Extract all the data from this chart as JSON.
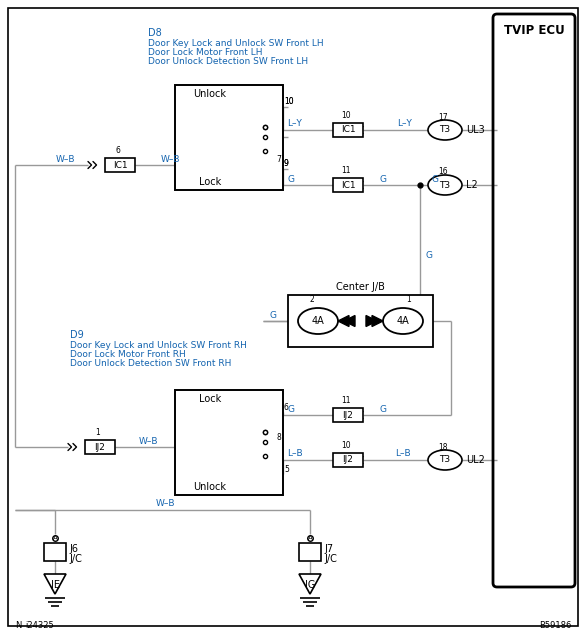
{
  "bg_color": "#ffffff",
  "wire_color": "#999999",
  "text_blue": "#1464af",
  "text_black": "#000000",
  "fig_width": 5.86,
  "fig_height": 6.35,
  "d8_line1": "D8",
  "d8_line2": "Door Key Lock and Unlock SW Front LH",
  "d8_line3": "Door Lock Motor Front LH",
  "d8_line4": "Door Unlock Detection SW Front LH",
  "d9_line1": "D9",
  "d9_line2": "Door Key Lock and Unlock SW Front RH",
  "d9_line3": "Door Lock Motor Front RH",
  "d9_line4": "Door Unlock Detection SW Front RH",
  "tvip_label": "TVIP ECU",
  "center_jb_label": "Center J/B",
  "footnote_n": "N",
  "footnote_id": "i24325",
  "footnote_r": "B59186"
}
